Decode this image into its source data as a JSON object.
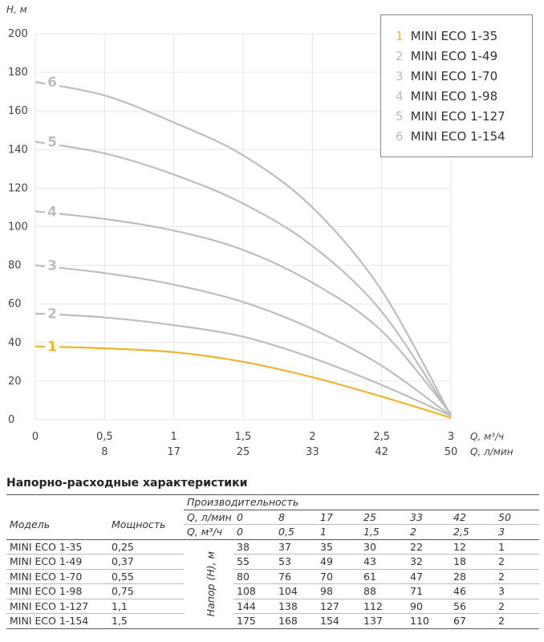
{
  "chart_data": {
    "type": "line",
    "y_axis": {
      "label": "H, м",
      "ticks": [
        0,
        20,
        40,
        60,
        80,
        100,
        120,
        140,
        160,
        180,
        200
      ],
      "ylim": [
        0,
        200
      ]
    },
    "x_axis_primary": {
      "label": "Q, м³/ч",
      "ticks": [
        "0",
        "0,5",
        "1",
        "1,5",
        "2",
        "2,5",
        "3"
      ],
      "xlim": [
        0,
        3
      ]
    },
    "x_axis_secondary": {
      "label": "Q, л/мин",
      "ticks": [
        "8",
        "17",
        "25",
        "33",
        "42",
        "50"
      ]
    },
    "legend_position": "top-right",
    "series": [
      {
        "num": "1",
        "name": "MINI ECO 1-35",
        "color": "#f0b429",
        "x": [
          0,
          0.5,
          1,
          1.5,
          2,
          2.5,
          3
        ],
        "y": [
          38,
          37,
          35,
          30,
          22,
          12,
          1
        ]
      },
      {
        "num": "2",
        "name": "MINI ECO 1-49",
        "color": "#bdbdbd",
        "x": [
          0,
          0.5,
          1,
          1.5,
          2,
          2.5,
          3
        ],
        "y": [
          55,
          53,
          49,
          43,
          32,
          18,
          2
        ]
      },
      {
        "num": "3",
        "name": "MINI ECO 1-70",
        "color": "#bdbdbd",
        "x": [
          0,
          0.5,
          1,
          1.5,
          2,
          2.5,
          3
        ],
        "y": [
          80,
          76,
          70,
          61,
          47,
          28,
          2
        ]
      },
      {
        "num": "4",
        "name": "MINI ECO 1-98",
        "color": "#bdbdbd",
        "x": [
          0,
          0.5,
          1,
          1.5,
          2,
          2.5,
          3
        ],
        "y": [
          108,
          104,
          98,
          88,
          71,
          46,
          3
        ]
      },
      {
        "num": "5",
        "name": "MINI ECO 1-127",
        "color": "#bdbdbd",
        "x": [
          0,
          0.5,
          1,
          1.5,
          2,
          2.5,
          3
        ],
        "y": [
          144,
          138,
          127,
          112,
          90,
          56,
          2
        ]
      },
      {
        "num": "6",
        "name": "MINI ECO 1-154",
        "color": "#bdbdbd",
        "x": [
          0,
          0.5,
          1,
          1.5,
          2,
          2.5,
          3
        ],
        "y": [
          175,
          168,
          154,
          137,
          110,
          67,
          2
        ]
      }
    ]
  },
  "table": {
    "title": "Напорно-расходные характеристики",
    "col_model": "Модель",
    "col_power": "Мощность",
    "col_perf": "Производительность",
    "row_lmin_label": "Q, л/мин",
    "row_lmin": [
      "0",
      "8",
      "17",
      "25",
      "33",
      "42",
      "50"
    ],
    "row_m3h_label": "Q, м³/ч",
    "row_m3h": [
      "0",
      "0,5",
      "1",
      "1,5",
      "2",
      "2,5",
      "3"
    ],
    "head_label": "Напор (Н), м",
    "rows": [
      {
        "model": "MINI ECO 1-35",
        "power": "0,25",
        "values": [
          "38",
          "37",
          "35",
          "30",
          "22",
          "12",
          "1"
        ]
      },
      {
        "model": "MINI ECO 1-49",
        "power": "0,37",
        "values": [
          "55",
          "53",
          "49",
          "43",
          "32",
          "18",
          "2"
        ]
      },
      {
        "model": "MINI ECO 1-70",
        "power": "0,55",
        "values": [
          "80",
          "76",
          "70",
          "61",
          "47",
          "28",
          "2"
        ]
      },
      {
        "model": "MINI ECO 1-98",
        "power": "0,75",
        "values": [
          "108",
          "104",
          "98",
          "88",
          "71",
          "46",
          "3"
        ]
      },
      {
        "model": "MINI ECO 1-127",
        "power": "1,1",
        "values": [
          "144",
          "138",
          "127",
          "112",
          "90",
          "56",
          "2"
        ]
      },
      {
        "model": "MINI ECO 1-154",
        "power": "1,5",
        "values": [
          "175",
          "168",
          "154",
          "137",
          "110",
          "67",
          "2"
        ]
      }
    ]
  }
}
